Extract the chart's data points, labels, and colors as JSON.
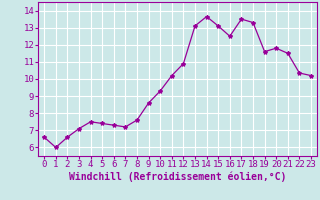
{
  "x": [
    0,
    1,
    2,
    3,
    4,
    5,
    6,
    7,
    8,
    9,
    10,
    11,
    12,
    13,
    14,
    15,
    16,
    17,
    18,
    19,
    20,
    21,
    22,
    23
  ],
  "y": [
    6.6,
    6.0,
    6.6,
    7.1,
    7.5,
    7.4,
    7.3,
    7.2,
    7.6,
    8.6,
    9.3,
    10.2,
    10.9,
    13.1,
    13.65,
    13.1,
    12.5,
    13.5,
    13.3,
    11.6,
    11.8,
    11.5,
    10.35,
    10.2
  ],
  "line_color": "#990099",
  "marker": "*",
  "marker_size": 3,
  "bg_color": "#cce8e8",
  "grid_color": "#b0d8d8",
  "xlabel": "Windchill (Refroidissement éolien,°C)",
  "ylim": [
    5.5,
    14.5
  ],
  "xlim": [
    -0.5,
    23.5
  ],
  "yticks": [
    6,
    7,
    8,
    9,
    10,
    11,
    12,
    13,
    14
  ],
  "xticks": [
    0,
    1,
    2,
    3,
    4,
    5,
    6,
    7,
    8,
    9,
    10,
    11,
    12,
    13,
    14,
    15,
    16,
    17,
    18,
    19,
    20,
    21,
    22,
    23
  ],
  "xlabel_fontsize": 7,
  "tick_fontsize": 6.5,
  "tick_color": "#990099",
  "spine_color": "#990099"
}
